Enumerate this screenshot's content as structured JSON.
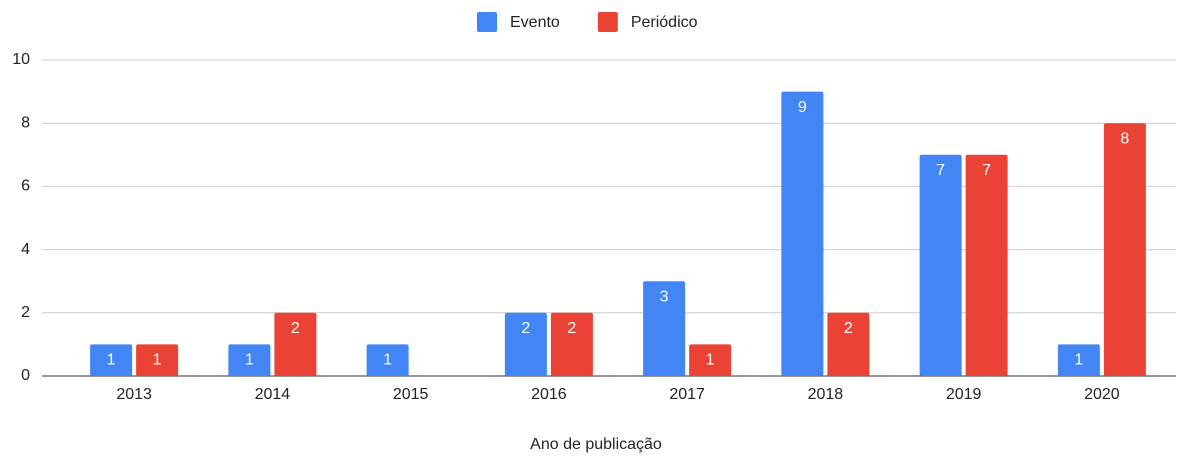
{
  "chart_data": {
    "type": "bar",
    "categories": [
      "2013",
      "2014",
      "2015",
      "2016",
      "2017",
      "2018",
      "2019",
      "2020"
    ],
    "series": [
      {
        "name": "Evento",
        "color": "#4285f4",
        "values": [
          1,
          1,
          1,
          2,
          3,
          9,
          7,
          1
        ]
      },
      {
        "name": "Periódico",
        "color": "#ea4335",
        "values": [
          1,
          2,
          null,
          2,
          1,
          2,
          7,
          8
        ]
      }
    ],
    "xlabel": "Ano de publicação",
    "ylim": [
      0,
      10
    ],
    "yticks": [
      0,
      2,
      4,
      6,
      8,
      10
    ],
    "grid": true,
    "legend": "top"
  }
}
